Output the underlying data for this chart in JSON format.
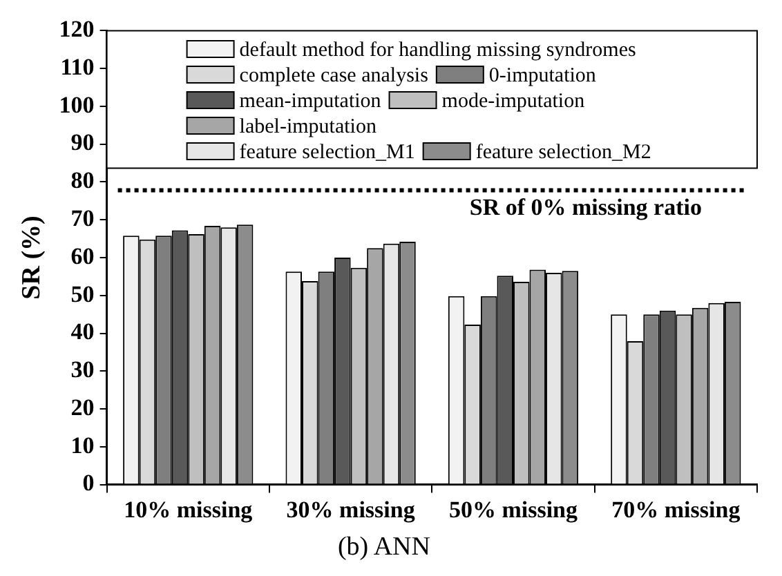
{
  "chart_data": {
    "type": "bar",
    "title": "(b) ANN",
    "ylabel": "SR (%)",
    "categories": [
      "10% missing",
      "30% missing",
      "50% missing",
      "70% missing"
    ],
    "series": [
      {
        "name": "default method for handling missing syndromes",
        "color": "#f2f2f2",
        "values": [
          65.8,
          56.3,
          49.8,
          45
        ]
      },
      {
        "name": "complete case analysis",
        "color": "#d9d9d9",
        "values": [
          64.8,
          53.8,
          42.3,
          37.9
        ]
      },
      {
        "name": "0-imputation",
        "color": "#7f7f7f",
        "values": [
          65.8,
          56.3,
          49.8,
          45
        ]
      },
      {
        "name": "mean-imputation",
        "color": "#595959",
        "values": [
          67.2,
          60,
          55.2,
          46
        ]
      },
      {
        "name": "mode-imputation",
        "color": "#bfbfbf",
        "values": [
          66.2,
          57.3,
          53.6,
          45
        ]
      },
      {
        "name": "label-imputation",
        "color": "#a6a6a6",
        "values": [
          68.4,
          62.5,
          56.8,
          46.7
        ]
      },
      {
        "name": "feature selection_M1",
        "color": "#e6e6e6",
        "values": [
          68,
          63.7,
          56,
          48
        ]
      },
      {
        "name": "feature selection_M2",
        "color": "#8c8c8c",
        "values": [
          68.7,
          64.2,
          56.5,
          48.3
        ]
      }
    ],
    "ylim": [
      0,
      120
    ],
    "yticks": [
      0,
      10,
      20,
      30,
      40,
      50,
      60,
      70,
      80,
      90,
      100,
      110,
      120
    ],
    "ref_lines": [
      {
        "axis": "y",
        "value": 77.8,
        "label": "SR of 0% missing ratio",
        "color": "#000000",
        "line_style": "dotted"
      }
    ],
    "legend": "top",
    "grid": false
  }
}
